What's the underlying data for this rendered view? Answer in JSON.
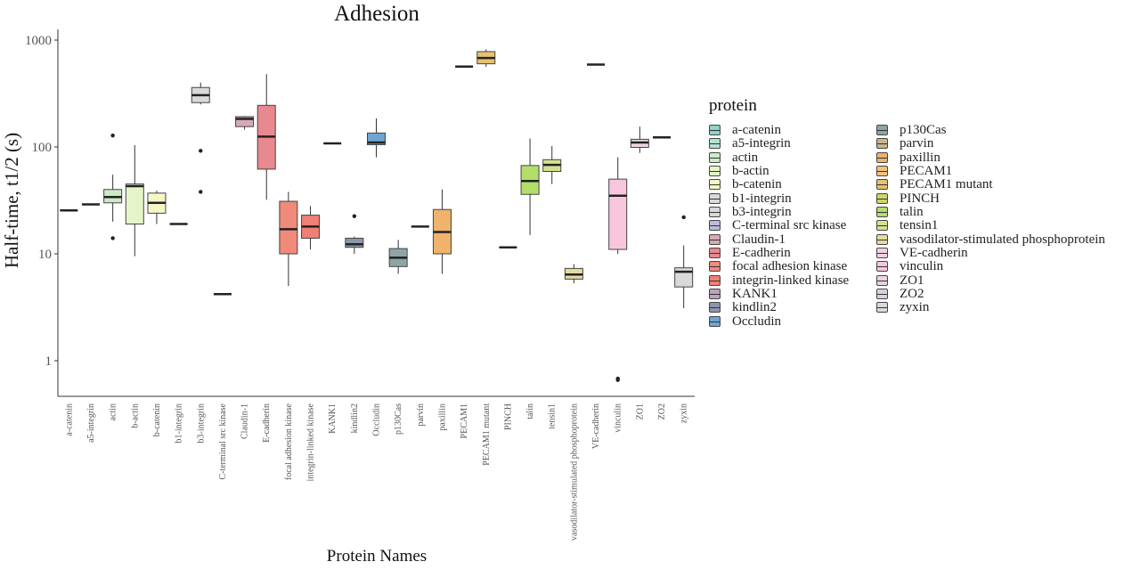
{
  "chart_data": {
    "type": "box",
    "title": "Adhesion",
    "xlabel": "Protein Names",
    "ylabel": "Half-time, t1/2 (s)",
    "y_scale": "log10",
    "ylim": [
      0.5,
      1200
    ],
    "y_ticks": [
      1,
      10,
      100,
      1000
    ],
    "y_tick_labels": [
      "1",
      "10",
      "100",
      "1000"
    ],
    "grid": false,
    "legend_title": "protein",
    "legend_position": "right",
    "categories": [
      "a-catenin",
      "a5-integrin",
      "actin",
      "b-actin",
      "b-catenin",
      "b1-integrin",
      "b3-integrin",
      "C-terminal src kinase",
      "Claudin-1",
      "E-cadherin",
      "focal adhesion kinase",
      "integrin-linked kinase",
      "KANK1",
      "kindlin2",
      "Occludin",
      "p130Cas",
      "parvin",
      "paxillin",
      "PECAM1",
      "PECAM1 mutant",
      "PINCH",
      "talin",
      "tensin1",
      "vasodilator-stimulated phosphoprotein",
      "VE-cadherin",
      "vinculin",
      "ZO1",
      "ZO2",
      "zyxin"
    ],
    "legend_labels": [
      "a-catenin",
      "a5-integrin",
      "actin",
      "b-actin",
      "b-catenin",
      "b1-integrin",
      "b3-integrin",
      "C-terminal src kinase",
      "Claudin-1",
      "E-cadherin",
      "focal adhesion kinase",
      "integrin-linked kinase",
      "KANK1",
      "kindlin2",
      "Occludin",
      "p130Cas",
      "parvin",
      "paxillin",
      "PECAM1",
      "PECAM1 mutant",
      "PINCH",
      "talin",
      "tensin1",
      "vasodilator-stimulated phosphoprotein",
      "VE-cadherin",
      "vinculin",
      "ZO1",
      "ZO2",
      "zyxin"
    ],
    "colors": [
      "#8dd3c7",
      "#b3e2cd",
      "#ccebc5",
      "#e6f5c9",
      "#f4f7c5",
      "#d9d9d9",
      "#d9d9d9",
      "#bebada",
      "#d7a9b7",
      "#e8888f",
      "#f08a7a",
      "#f07f75",
      "#b9a3bf",
      "#8c96ad",
      "#6ea6d0",
      "#8fa5a5",
      "#c6b68f",
      "#f0b36c",
      "#f5c27a",
      "#e6c26c",
      "#cfd56a",
      "#b3de69",
      "#d4e28f",
      "#e2dca0",
      "#f3d1df",
      "#f7c6dd",
      "#e8d4e4",
      "#dad0dc",
      "#d9d9d9"
    ],
    "series": [
      {
        "category": "a-catenin",
        "min": 25.5,
        "q1": 25.5,
        "median": 25.5,
        "q3": 25.5,
        "max": 25.5,
        "outliers": []
      },
      {
        "category": "a5-integrin",
        "min": 29,
        "q1": 29,
        "median": 29,
        "q3": 29,
        "max": 29,
        "outliers": []
      },
      {
        "category": "actin",
        "min": 20,
        "q1": 30,
        "median": 34,
        "q3": 40,
        "max": 55,
        "outliers": [
          128,
          14
        ]
      },
      {
        "category": "b-actin",
        "min": 9.5,
        "q1": 19,
        "median": 43,
        "q3": 45,
        "max": 104,
        "outliers": []
      },
      {
        "category": "b-catenin",
        "min": 19,
        "q1": 24,
        "median": 30,
        "q3": 37,
        "max": 39,
        "outliers": []
      },
      {
        "category": "b1-integrin",
        "min": 19,
        "q1": 19,
        "median": 19,
        "q3": 19,
        "max": 19,
        "outliers": []
      },
      {
        "category": "b3-integrin",
        "min": 250,
        "q1": 260,
        "median": 305,
        "q3": 360,
        "max": 400,
        "outliers": [
          92,
          38
        ]
      },
      {
        "category": "C-terminal src kinase",
        "min": 4.2,
        "q1": 4.2,
        "median": 4.2,
        "q3": 4.2,
        "max": 4.2,
        "outliers": []
      },
      {
        "category": "Claudin-1",
        "min": 145,
        "q1": 155,
        "median": 183,
        "q3": 192,
        "max": 195,
        "outliers": []
      },
      {
        "category": "E-cadherin",
        "min": 32,
        "q1": 62,
        "median": 125,
        "q3": 245,
        "max": 480,
        "outliers": []
      },
      {
        "category": "focal adhesion kinase",
        "min": 5,
        "q1": 10,
        "median": 17,
        "q3": 31,
        "max": 38,
        "outliers": []
      },
      {
        "category": "integrin-linked kinase",
        "min": 11,
        "q1": 14,
        "median": 18,
        "q3": 23,
        "max": 28,
        "outliers": []
      },
      {
        "category": "KANK1",
        "min": 108,
        "q1": 108,
        "median": 108,
        "q3": 108,
        "max": 108,
        "outliers": []
      },
      {
        "category": "kindlin2",
        "min": 10,
        "q1": 11.5,
        "median": 12.3,
        "q3": 14,
        "max": 14.5,
        "outliers": [
          22.5
        ]
      },
      {
        "category": "Occludin",
        "min": 80,
        "q1": 105,
        "median": 110,
        "q3": 135,
        "max": 185,
        "outliers": []
      },
      {
        "category": "p130Cas",
        "min": 6.5,
        "q1": 7.6,
        "median": 9.2,
        "q3": 11.2,
        "max": 13.5,
        "outliers": []
      },
      {
        "category": "parvin",
        "min": 18,
        "q1": 18,
        "median": 18,
        "q3": 18,
        "max": 18,
        "outliers": []
      },
      {
        "category": "paxillin",
        "min": 6.5,
        "q1": 10,
        "median": 16,
        "q3": 26,
        "max": 40,
        "outliers": []
      },
      {
        "category": "PECAM1",
        "min": 565,
        "q1": 565,
        "median": 565,
        "q3": 565,
        "max": 565,
        "outliers": []
      },
      {
        "category": "PECAM1 mutant",
        "min": 560,
        "q1": 600,
        "median": 680,
        "q3": 780,
        "max": 820,
        "outliers": []
      },
      {
        "category": "PINCH",
        "min": 11.5,
        "q1": 11.5,
        "median": 11.5,
        "q3": 11.5,
        "max": 11.5,
        "outliers": []
      },
      {
        "category": "talin",
        "min": 15,
        "q1": 36,
        "median": 48,
        "q3": 67,
        "max": 120,
        "outliers": []
      },
      {
        "category": "tensin1",
        "min": 45,
        "q1": 59,
        "median": 68,
        "q3": 76,
        "max": 102,
        "outliers": []
      },
      {
        "category": "vasodilator-stimulated phosphoprotein",
        "min": 5.3,
        "q1": 5.8,
        "median": 6.4,
        "q3": 7.3,
        "max": 8,
        "outliers": []
      },
      {
        "category": "VE-cadherin",
        "min": 590,
        "q1": 590,
        "median": 590,
        "q3": 590,
        "max": 590,
        "outliers": []
      },
      {
        "category": "vinculin",
        "min": 10,
        "q1": 11,
        "median": 35,
        "q3": 50,
        "max": 80,
        "outliers": [
          0.68,
          0.66
        ]
      },
      {
        "category": "ZO1",
        "min": 88,
        "q1": 99,
        "median": 110,
        "q3": 118,
        "max": 155,
        "outliers": []
      },
      {
        "category": "ZO2",
        "min": 123,
        "q1": 123,
        "median": 123,
        "q3": 123,
        "max": 123,
        "outliers": []
      },
      {
        "category": "zyxin",
        "min": 3.1,
        "q1": 4.9,
        "median": 6.8,
        "q3": 7.4,
        "max": 12,
        "outliers": [
          22
        ]
      }
    ]
  }
}
